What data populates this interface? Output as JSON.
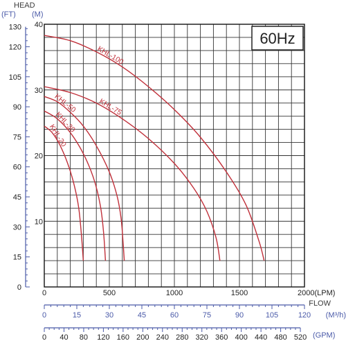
{
  "chart_data": {
    "type": "line",
    "badge": "60Hz",
    "head_axis_title": "HEAD",
    "head_ft_unit": "(FT)",
    "head_m_unit": "(M)",
    "head_ft_ticks": [
      "130",
      "120",
      "105",
      "90",
      "75",
      "60",
      "45",
      "30",
      "15",
      "0"
    ],
    "head_ft_tick_values": [
      130,
      120,
      105,
      90,
      75,
      60,
      45,
      30,
      15,
      0
    ],
    "head_m_ticks": [
      "40",
      "30",
      "20",
      "10"
    ],
    "head_m_tick_values": [
      40,
      30,
      20,
      10
    ],
    "head_m_range": [
      0,
      40
    ],
    "flow_lpm_range": [
      0,
      2000
    ],
    "flow_lpm_ticks": [
      "0",
      "500",
      "1000",
      "1500",
      "2000(LPM)"
    ],
    "flow_lpm_tick_values": [
      0,
      500,
      1000,
      1500,
      2000
    ],
    "flow_label": "FLOW",
    "flow_m3h_unit": "(M³/h)",
    "flow_m3h_ticks": [
      "0",
      "15",
      "30",
      "45",
      "60",
      "75",
      "90",
      "105",
      "120"
    ],
    "flow_m3h_tick_values": [
      0,
      15,
      30,
      45,
      60,
      75,
      90,
      105,
      120
    ],
    "flow_gpm_unit": "(GPM)",
    "flow_gpm_ticks": [
      "0",
      "40",
      "80",
      "120",
      "160",
      "200",
      "240",
      "280",
      "320",
      "360",
      "400",
      "440",
      "480",
      "520"
    ],
    "flow_gpm_tick_values": [
      0,
      40,
      80,
      120,
      160,
      200,
      240,
      280,
      320,
      360,
      400,
      440,
      480,
      520
    ],
    "grid": true,
    "series": [
      {
        "name": "KHL-100",
        "color": "#c0303a",
        "x": [
          0,
          200,
          400,
          600,
          800,
          1000,
          1200,
          1400,
          1550,
          1650,
          1690
        ],
        "y": [
          38.3,
          37.5,
          35.8,
          33.5,
          30.5,
          27.0,
          22.8,
          17.5,
          12.5,
          7.0,
          4.0
        ]
      },
      {
        "name": "KHL-75",
        "color": "#c0303a",
        "x": [
          0,
          200,
          400,
          600,
          800,
          1000,
          1150,
          1250,
          1320,
          1350
        ],
        "y": [
          30.5,
          29.6,
          28.0,
          25.6,
          22.6,
          18.8,
          15.0,
          11.5,
          7.5,
          4.0
        ]
      },
      {
        "name": "KHL-50",
        "color": "#c0303a",
        "x": [
          0,
          100,
          200,
          300,
          400,
          500,
          560,
          590,
          605,
          615
        ],
        "y": [
          29.0,
          28.2,
          26.6,
          24.5,
          21.5,
          17.5,
          13.8,
          10.5,
          7.0,
          4.0
        ]
      },
      {
        "name": "KHL-30",
        "color": "#c0303a",
        "x": [
          0,
          100,
          200,
          300,
          380,
          430,
          455,
          470
        ],
        "y": [
          26.8,
          25.6,
          23.5,
          20.3,
          16.5,
          12.5,
          8.5,
          4.0
        ]
      },
      {
        "name": "KHL-20",
        "color": "#c0303a",
        "x": [
          0,
          60,
          120,
          180,
          230,
          265,
          285,
          300
        ],
        "y": [
          24.5,
          23.5,
          21.6,
          18.8,
          15.5,
          12.0,
          8.0,
          4.0
        ]
      }
    ]
  }
}
